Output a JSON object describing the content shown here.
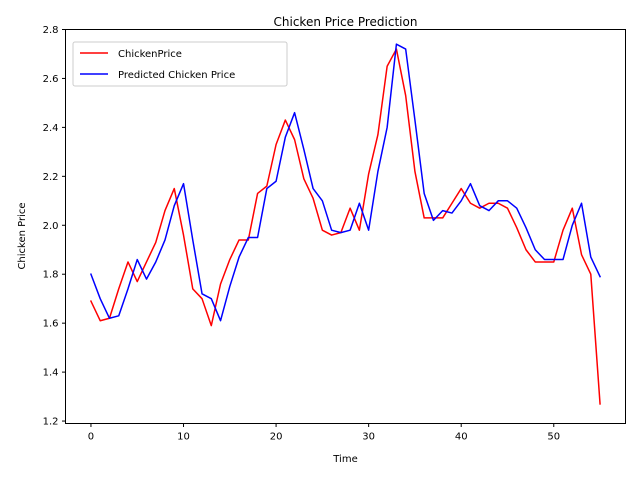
{
  "chart_data": {
    "type": "line",
    "title": "Chicken Price Prediction",
    "xlabel": "Time",
    "ylabel": "Chicken Price",
    "xlim": [
      -2.75,
      57.75
    ],
    "ylim": [
      1.19,
      2.8
    ],
    "xticks": [
      0,
      10,
      20,
      30,
      40,
      50
    ],
    "yticks": [
      1.2,
      1.4,
      1.6,
      1.8,
      2.0,
      2.2,
      2.4,
      2.6,
      2.8
    ],
    "ytick_labels": [
      "1.2",
      "1.4",
      "1.6",
      "1.8",
      "2.0",
      "2.2",
      "2.4",
      "2.6",
      "2.8"
    ],
    "grid": false,
    "legend_position": "upper-left",
    "x": [
      0,
      1,
      2,
      3,
      4,
      5,
      6,
      7,
      8,
      9,
      10,
      11,
      12,
      13,
      14,
      15,
      16,
      17,
      18,
      19,
      20,
      21,
      22,
      23,
      24,
      25,
      26,
      27,
      28,
      29,
      30,
      31,
      32,
      33,
      34,
      35,
      36,
      37,
      38,
      39,
      40,
      41,
      42,
      43,
      44,
      45,
      46,
      47,
      48,
      49,
      50,
      51,
      52,
      53,
      54,
      55
    ],
    "series": [
      {
        "name": "ChickenPrice",
        "color": "#ff0000",
        "values": [
          1.69,
          1.61,
          1.62,
          1.74,
          1.85,
          1.77,
          1.85,
          1.93,
          2.06,
          2.15,
          1.96,
          1.74,
          1.7,
          1.59,
          1.76,
          1.86,
          1.94,
          1.94,
          2.13,
          2.16,
          2.33,
          2.43,
          2.35,
          2.19,
          2.11,
          1.98,
          1.96,
          1.97,
          2.07,
          1.98,
          2.21,
          2.37,
          2.65,
          2.72,
          2.53,
          2.22,
          2.03,
          2.03,
          2.03,
          2.09,
          2.15,
          2.09,
          2.07,
          2.09,
          2.09,
          2.07,
          1.99,
          1.9,
          1.85,
          1.85,
          1.85,
          1.98,
          2.07,
          1.88,
          1.8,
          1.27
        ]
      },
      {
        "name": "Predicted Chicken Price",
        "color": "#0000ff",
        "values": [
          1.8,
          1.7,
          1.62,
          1.63,
          1.74,
          1.86,
          1.78,
          1.85,
          1.94,
          2.08,
          2.17,
          1.94,
          1.72,
          1.7,
          1.61,
          1.75,
          1.87,
          1.95,
          1.95,
          2.15,
          2.18,
          2.36,
          2.46,
          2.31,
          2.15,
          2.1,
          1.98,
          1.97,
          1.98,
          2.09,
          1.98,
          2.22,
          2.4,
          2.74,
          2.72,
          2.43,
          2.13,
          2.02,
          2.06,
          2.05,
          2.1,
          2.17,
          2.08,
          2.06,
          2.1,
          2.1,
          2.07,
          1.99,
          1.9,
          1.86,
          1.86,
          1.86,
          2.0,
          2.09,
          1.87,
          1.79
        ]
      }
    ]
  }
}
